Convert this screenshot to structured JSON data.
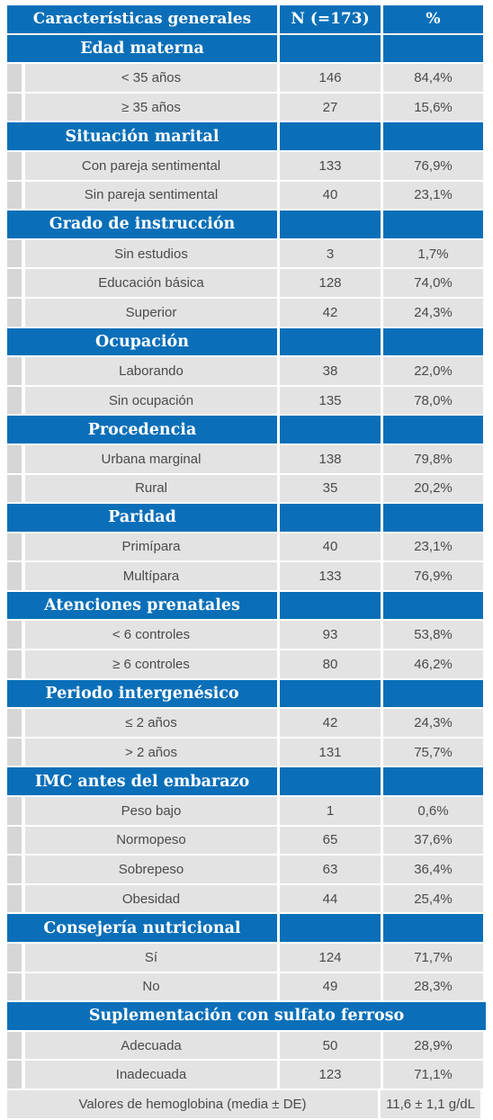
{
  "header": {
    "characteristic": "Características generales",
    "n": "N (=173)",
    "pct": "%"
  },
  "sections": [
    {
      "title": "Edad materna",
      "rows": [
        {
          "label": "< 35 años",
          "n": "146",
          "pct": "84,4%"
        },
        {
          "label": "≥ 35 años",
          "n": "27",
          "pct": "15,6%"
        }
      ]
    },
    {
      "title": "Situación marital",
      "rows": [
        {
          "label": "Con pareja sentimental",
          "n": "133",
          "pct": "76,9%"
        },
        {
          "label": "Sin pareja sentimental",
          "n": "40",
          "pct": "23,1%"
        }
      ]
    },
    {
      "title": "Grado de instrucción",
      "rows": [
        {
          "label": "Sin estudios",
          "n": "3",
          "pct": "1,7%"
        },
        {
          "label": "Educación básica",
          "n": "128",
          "pct": "74,0%"
        },
        {
          "label": "Superior",
          "n": "42",
          "pct": "24,3%"
        }
      ]
    },
    {
      "title": "Ocupación",
      "rows": [
        {
          "label": "Laborando",
          "n": "38",
          "pct": "22,0%"
        },
        {
          "label": "Sin ocupación",
          "n": "135",
          "pct": "78,0%"
        }
      ]
    },
    {
      "title": "Procedencia",
      "rows": [
        {
          "label": "Urbana marginal",
          "n": "138",
          "pct": "79,8%"
        },
        {
          "label": "Rural",
          "n": "35",
          "pct": "20,2%"
        }
      ]
    },
    {
      "title": "Paridad",
      "rows": [
        {
          "label": "Primípara",
          "n": "40",
          "pct": "23,1%"
        },
        {
          "label": "Multípara",
          "n": "133",
          "pct": "76,9%"
        }
      ]
    },
    {
      "title": "Atenciones prenatales",
      "rows": [
        {
          "label": "< 6 controles",
          "n": "93",
          "pct": "53,8%"
        },
        {
          "label": "≥ 6 controles",
          "n": "80",
          "pct": "46,2%"
        }
      ]
    },
    {
      "title": "Periodo intergenésico",
      "rows": [
        {
          "label": "≤ 2 años",
          "n": "42",
          "pct": "24,3%"
        },
        {
          "label": "> 2 años",
          "n": "131",
          "pct": "75,7%"
        }
      ]
    },
    {
      "title": "IMC antes del embarazo",
      "rows": [
        {
          "label": "Peso bajo",
          "n": "1",
          "pct": "0,6%"
        },
        {
          "label": "Normopeso",
          "n": "65",
          "pct": "37,6%"
        },
        {
          "label": "Sobrepeso",
          "n": "63",
          "pct": "36,4%"
        },
        {
          "label": "Obesidad",
          "n": "44",
          "pct": "25,4%"
        }
      ]
    },
    {
      "title": "Consejería nutricional",
      "rows": [
        {
          "label": "Sí",
          "n": "124",
          "pct": "71,7%"
        },
        {
          "label": "No",
          "n": "49",
          "pct": "28,3%"
        }
      ]
    },
    {
      "title": "Suplementación con sulfato ferroso",
      "wide": true,
      "rows": [
        {
          "label": "Adecuada",
          "n": "50",
          "pct": "28,9%"
        },
        {
          "label": "Inadecuada",
          "n": "123",
          "pct": "71,1%"
        }
      ]
    }
  ],
  "footer": {
    "label": "Valores de hemoglobina (media ± DE)",
    "value": "11,6 ± 1,1 g/dL"
  },
  "colors": {
    "header_blue": "#0a6fb8",
    "cell_grey": "#e3e3e3",
    "stub_grey": "#d6d6d6"
  }
}
